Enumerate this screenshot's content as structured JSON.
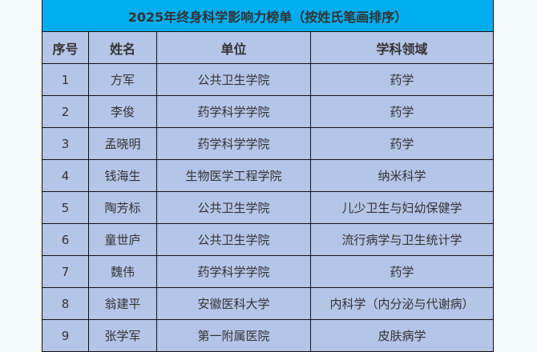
{
  "title": "2025年终身科学影响力榜单（按姓氏笔画排序）",
  "columns": [
    "序号",
    "姓名",
    "单位",
    "学科领域"
  ],
  "rows": [
    [
      "1",
      "方军",
      "公共卫生学院",
      "药学"
    ],
    [
      "2",
      "李俊",
      "药学科学学院",
      "药学"
    ],
    [
      "3",
      "孟晓明",
      "药学科学学院",
      "药学"
    ],
    [
      "4",
      "钱海生",
      "生物医学工程学院",
      "纳米科学"
    ],
    [
      "5",
      "陶芳标",
      "公共卫生学院",
      "儿少卫生与妇幼保健学"
    ],
    [
      "6",
      "童世庐",
      "公共卫生学院",
      "流行病学与卫生统计学"
    ],
    [
      "7",
      "魏伟",
      "药学科学学院",
      "药学"
    ],
    [
      "8",
      "翁建平",
      "安徽医科大学",
      "内科学（内分泌与代谢病）"
    ],
    [
      "9",
      "张学军",
      "第一附属医院",
      "皮肤病学"
    ]
  ],
  "colors": {
    "title_bg": "#00aeef",
    "cell_bg": "#b4c6e7",
    "border": "#111111"
  }
}
